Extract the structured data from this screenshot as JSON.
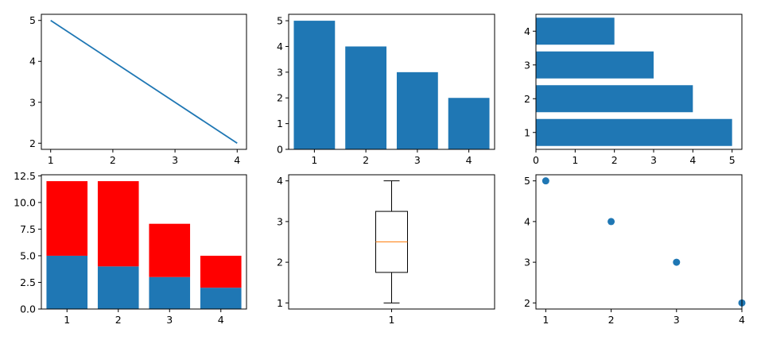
{
  "figure": {
    "panel_colors": {
      "primary": "#1f77b4",
      "secondary": "#ff0000",
      "median": "#ff7f0e",
      "axes": "#000000"
    }
  },
  "chart_data": [
    {
      "type": "line",
      "x": [
        1,
        2,
        3,
        4
      ],
      "series": [
        {
          "values": [
            5,
            4,
            3,
            2
          ]
        }
      ],
      "xlim": [
        0.85,
        4.15
      ],
      "ylim": [
        1.85,
        5.15
      ],
      "xticks": [
        1,
        2,
        3,
        4
      ],
      "yticks": [
        2,
        3,
        4,
        5
      ],
      "xticklabels": [
        "1",
        "2",
        "3",
        "4"
      ],
      "yticklabels": [
        "2",
        "3",
        "4",
        "5"
      ],
      "grid": false
    },
    {
      "type": "bar",
      "categories": [
        "1",
        "2",
        "3",
        "4"
      ],
      "values": [
        5,
        4,
        3,
        2
      ],
      "xlim": [
        0.5,
        4.5
      ],
      "ylim": [
        0,
        5.25
      ],
      "xticks": [
        1,
        2,
        3,
        4
      ],
      "yticks": [
        0,
        1,
        2,
        3,
        4,
        5
      ],
      "xticklabels": [
        "1",
        "2",
        "3",
        "4"
      ],
      "yticklabels": [
        "0",
        "1",
        "2",
        "3",
        "4",
        "5"
      ],
      "grid": false
    },
    {
      "type": "bar",
      "orientation": "horizontal",
      "categories": [
        "1",
        "2",
        "3",
        "4"
      ],
      "values": [
        5,
        4,
        3,
        2
      ],
      "xlim": [
        0,
        5.25
      ],
      "ylim": [
        0.5,
        4.5
      ],
      "xticks": [
        0,
        1,
        2,
        3,
        4,
        5
      ],
      "yticks": [
        1,
        2,
        3,
        4
      ],
      "xticklabels": [
        "0",
        "1",
        "2",
        "3",
        "4",
        "5"
      ],
      "yticklabels": [
        "1",
        "2",
        "3",
        "4"
      ],
      "grid": false
    },
    {
      "type": "bar",
      "stacked": true,
      "categories": [
        "1",
        "2",
        "3",
        "4"
      ],
      "series": [
        {
          "values": [
            5,
            4,
            3,
            2
          ]
        },
        {
          "values": [
            7,
            8,
            5,
            3
          ]
        }
      ],
      "xlim": [
        0.5,
        4.5
      ],
      "ylim": [
        0,
        12.6
      ],
      "xticks": [
        1,
        2,
        3,
        4
      ],
      "yticks": [
        0,
        2.5,
        5,
        7.5,
        10,
        12.5
      ],
      "xticklabels": [
        "1",
        "2",
        "3",
        "4"
      ],
      "yticklabels": [
        "0.0",
        "2.5",
        "5.0",
        "7.5",
        "10.0",
        "12.5"
      ],
      "grid": false
    },
    {
      "type": "box",
      "categories": [
        "1"
      ],
      "box": {
        "min": 1,
        "q1": 1.75,
        "median": 2.5,
        "q3": 3.25,
        "max": 4
      },
      "ylim": [
        0.85,
        4.15
      ],
      "yticks": [
        1,
        2,
        3,
        4
      ],
      "xticklabels": [
        "1"
      ],
      "yticklabels": [
        "1",
        "2",
        "3",
        "4"
      ],
      "grid": false
    },
    {
      "type": "scatter",
      "x": [
        1,
        2,
        3,
        4
      ],
      "y": [
        5,
        4,
        3,
        2
      ],
      "xlim": [
        0.85,
        4.0
      ],
      "ylim": [
        1.85,
        5.15
      ],
      "xticks": [
        1,
        2,
        3,
        4
      ],
      "yticks": [
        2,
        3,
        4,
        5
      ],
      "xticklabels": [
        "1",
        "2",
        "3",
        "4"
      ],
      "yticklabels": [
        "2",
        "3",
        "4",
        "5"
      ],
      "grid": false
    }
  ]
}
